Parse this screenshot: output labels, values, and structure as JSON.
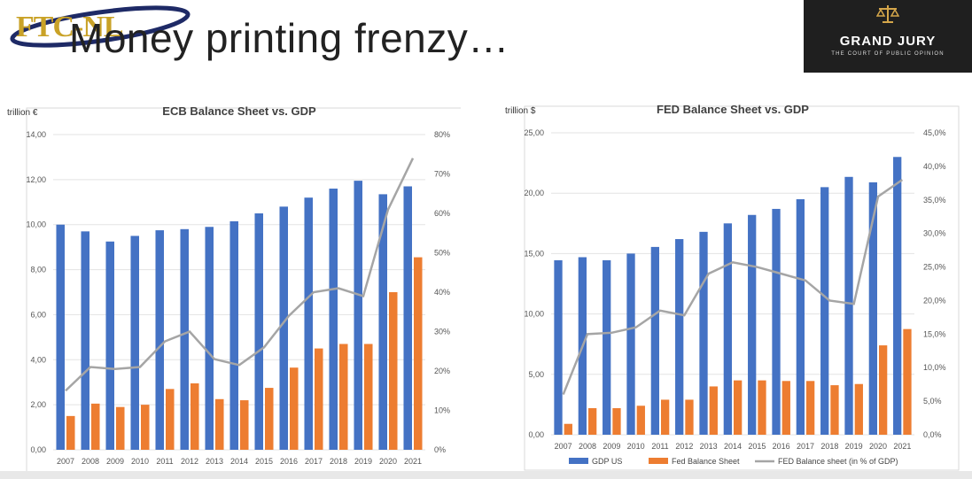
{
  "slide_title": "Money printing frenzy…",
  "logo_left": {
    "text": "FTC-NL"
  },
  "logo_right": {
    "name": "GRAND JURY",
    "tagline": "THE COURT OF PUBLIC OPINION"
  },
  "colors": {
    "gdp": "#4472c4",
    "balance": "#ed7d31",
    "ratio": "#a5a5a5"
  },
  "chart_data": [
    {
      "type": "bar",
      "title": "ECB Balance Sheet vs. GDP",
      "ylabel": "trillion €",
      "categories": [
        "2007",
        "2008",
        "2009",
        "2010",
        "2011",
        "2012",
        "2013",
        "2014",
        "2015",
        "2016",
        "2017",
        "2018",
        "2019",
        "2020",
        "2021"
      ],
      "ylim": [
        0,
        14
      ],
      "y_ticks": [
        "0,00",
        "2,00",
        "4,00",
        "6,00",
        "8,00",
        "10,00",
        "12,00",
        "14,00"
      ],
      "y2lim": [
        0,
        80
      ],
      "y2_ticks": [
        "0%",
        "10%",
        "20%",
        "30%",
        "40%",
        "50%",
        "60%",
        "70%",
        "80%"
      ],
      "series": [
        {
          "values": [
            10.0,
            9.7,
            9.25,
            9.5,
            9.75,
            9.8,
            9.9,
            10.15,
            10.5,
            10.8,
            11.2,
            11.6,
            11.95,
            11.35,
            11.7
          ]
        },
        {
          "values": [
            1.5,
            2.05,
            1.9,
            2.0,
            2.7,
            2.95,
            2.25,
            2.2,
            2.75,
            3.65,
            4.5,
            4.7,
            4.7,
            7.0,
            8.55
          ]
        },
        {
          "axis": "right",
          "values": [
            15,
            21,
            20.5,
            21,
            27.5,
            30,
            23,
            21.5,
            26,
            34,
            40,
            41,
            39,
            61,
            74
          ]
        }
      ],
      "legend": []
    },
    {
      "type": "bar",
      "title": "FED Balance Sheet vs. GDP",
      "ylabel": "trillion $",
      "categories": [
        "2007",
        "2008",
        "2009",
        "2010",
        "2011",
        "2012",
        "2013",
        "2014",
        "2015",
        "2016",
        "2017",
        "2018",
        "2019",
        "2020",
        "2021"
      ],
      "ylim": [
        0,
        25
      ],
      "y_ticks": [
        "0,00",
        "5,00",
        "10,00",
        "15,00",
        "20,00",
        "25,00"
      ],
      "y2lim": [
        0,
        45
      ],
      "y2_ticks": [
        "0,0%",
        "5,0%",
        "10,0%",
        "15,0%",
        "20,0%",
        "25,0%",
        "30,0%",
        "35,0%",
        "40,0%",
        "45,0%"
      ],
      "series": [
        {
          "name": "GDP US",
          "values": [
            14.45,
            14.7,
            14.45,
            15.0,
            15.55,
            16.2,
            16.8,
            17.5,
            18.2,
            18.7,
            19.5,
            20.5,
            21.35,
            20.9,
            23.0
          ]
        },
        {
          "name": "Fed Balance Sheet",
          "values": [
            0.9,
            2.2,
            2.2,
            2.4,
            2.9,
            2.9,
            4.0,
            4.5,
            4.5,
            4.45,
            4.45,
            4.1,
            4.2,
            7.4,
            8.75
          ]
        },
        {
          "name": "FED Balance sheet (in % of GDP)",
          "axis": "right",
          "values": [
            6,
            15,
            15.2,
            16,
            18.5,
            17.8,
            24,
            25.7,
            25,
            24,
            23,
            20,
            19.5,
            35.5,
            38
          ]
        }
      ],
      "legend": [
        "GDP US",
        "Fed Balance Sheet",
        "FED Balance sheet (in % of GDP)"
      ]
    }
  ]
}
